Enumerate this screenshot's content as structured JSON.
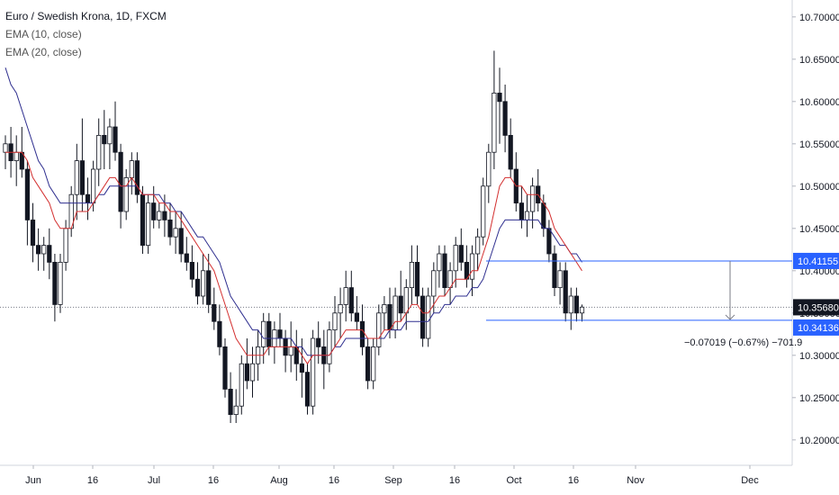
{
  "legend": {
    "title": "Euro / Swedish Krona, 1D, FXCM",
    "ema10": "EMA (10, close)",
    "ema20": "EMA (20, close)"
  },
  "measure_label": "−0.07019 (−0.67%) −701.9",
  "colors": {
    "up": "#131722",
    "down": "#131722",
    "ema10": "#d32f2f",
    "ema20": "#2f2f8f",
    "hline": "#2962ff",
    "price_tag": "#131722",
    "level_tag": "#2962ff",
    "grid": "#e0e3eb"
  },
  "chart_data": {
    "type": "candlestick",
    "title": "Euro / Swedish Krona, 1D, FXCM",
    "ylim": [
      10.17,
      10.72
    ],
    "y_ticks": [
      "10.70000",
      "10.65000",
      "10.60000",
      "10.55000",
      "10.50000",
      "10.45000",
      "10.40000",
      "10.35000",
      "10.30000",
      "10.25000",
      "10.20000"
    ],
    "x_ticks": [
      "Jun",
      "16",
      "Jul",
      "16",
      "Aug",
      "16",
      "Sep",
      "16",
      "Oct",
      "16",
      "Nov",
      "Dec"
    ],
    "levels": {
      "upper": "10.41155",
      "last": "10.35680",
      "lower": "10.34136"
    },
    "ohlc": [
      [
        10.54,
        10.56,
        10.52,
        10.55
      ],
      [
        10.55,
        10.57,
        10.51,
        10.53
      ],
      [
        10.53,
        10.56,
        10.5,
        10.54
      ],
      [
        10.54,
        10.57,
        10.51,
        10.52
      ],
      [
        10.52,
        10.53,
        10.43,
        10.46
      ],
      [
        10.46,
        10.48,
        10.41,
        10.43
      ],
      [
        10.43,
        10.45,
        10.4,
        10.42
      ],
      [
        10.42,
        10.44,
        10.4,
        10.43
      ],
      [
        10.43,
        10.45,
        10.39,
        10.41
      ],
      [
        10.41,
        10.42,
        10.34,
        10.36
      ],
      [
        10.36,
        10.42,
        10.35,
        10.41
      ],
      [
        10.41,
        10.46,
        10.4,
        10.45
      ],
      [
        10.45,
        10.5,
        10.44,
        10.49
      ],
      [
        10.49,
        10.55,
        10.46,
        10.53
      ],
      [
        10.53,
        10.58,
        10.47,
        10.49
      ],
      [
        10.49,
        10.51,
        10.46,
        10.48
      ],
      [
        10.48,
        10.53,
        10.47,
        10.52
      ],
      [
        10.52,
        10.58,
        10.5,
        10.56
      ],
      [
        10.56,
        10.59,
        10.52,
        10.55
      ],
      [
        10.55,
        10.58,
        10.52,
        10.57
      ],
      [
        10.57,
        10.6,
        10.53,
        10.54
      ],
      [
        10.54,
        10.55,
        10.45,
        10.47
      ],
      [
        10.47,
        10.52,
        10.46,
        10.51
      ],
      [
        10.51,
        10.54,
        10.49,
        10.53
      ],
      [
        10.53,
        10.54,
        10.48,
        10.49
      ],
      [
        10.49,
        10.5,
        10.42,
        10.43
      ],
      [
        10.43,
        10.49,
        10.42,
        10.48
      ],
      [
        10.48,
        10.5,
        10.45,
        10.46
      ],
      [
        10.46,
        10.48,
        10.45,
        10.47
      ],
      [
        10.47,
        10.49,
        10.44,
        10.46
      ],
      [
        10.46,
        10.48,
        10.43,
        10.44
      ],
      [
        10.44,
        10.47,
        10.42,
        10.45
      ],
      [
        10.45,
        10.47,
        10.41,
        10.42
      ],
      [
        10.42,
        10.44,
        10.4,
        10.41
      ],
      [
        10.41,
        10.43,
        10.38,
        10.39
      ],
      [
        10.39,
        10.41,
        10.36,
        10.37
      ],
      [
        10.37,
        10.42,
        10.36,
        10.4
      ],
      [
        10.4,
        10.42,
        10.35,
        10.36
      ],
      [
        10.36,
        10.38,
        10.33,
        10.34
      ],
      [
        10.34,
        10.36,
        10.3,
        10.31
      ],
      [
        10.31,
        10.32,
        10.25,
        10.26
      ],
      [
        10.26,
        10.28,
        10.22,
        10.23
      ],
      [
        10.23,
        10.26,
        10.22,
        10.24
      ],
      [
        10.24,
        10.3,
        10.23,
        10.29
      ],
      [
        10.29,
        10.32,
        10.26,
        10.27
      ],
      [
        10.27,
        10.31,
        10.25,
        10.29
      ],
      [
        10.29,
        10.33,
        10.27,
        10.31
      ],
      [
        10.31,
        10.35,
        10.29,
        10.34
      ],
      [
        10.34,
        10.35,
        10.3,
        10.31
      ],
      [
        10.31,
        10.34,
        10.29,
        10.33
      ],
      [
        10.33,
        10.35,
        10.31,
        10.32
      ],
      [
        10.32,
        10.33,
        10.28,
        10.3
      ],
      [
        10.3,
        10.34,
        10.28,
        10.31
      ],
      [
        10.31,
        10.33,
        10.27,
        10.29
      ],
      [
        10.29,
        10.32,
        10.25,
        10.28
      ],
      [
        10.28,
        10.29,
        10.23,
        10.24
      ],
      [
        10.24,
        10.33,
        10.23,
        10.32
      ],
      [
        10.32,
        10.34,
        10.29,
        10.31
      ],
      [
        10.31,
        10.33,
        10.26,
        10.29
      ],
      [
        10.29,
        10.34,
        10.28,
        10.33
      ],
      [
        10.33,
        10.37,
        10.31,
        10.35
      ],
      [
        10.35,
        10.38,
        10.32,
        10.36
      ],
      [
        10.36,
        10.4,
        10.34,
        10.38
      ],
      [
        10.38,
        10.4,
        10.34,
        10.35
      ],
      [
        10.35,
        10.37,
        10.33,
        10.34
      ],
      [
        10.34,
        10.36,
        10.3,
        10.31
      ],
      [
        10.31,
        10.32,
        10.26,
        10.27
      ],
      [
        10.27,
        10.32,
        10.26,
        10.31
      ],
      [
        10.31,
        10.36,
        10.3,
        10.35
      ],
      [
        10.35,
        10.37,
        10.33,
        10.36
      ],
      [
        10.36,
        10.38,
        10.32,
        10.33
      ],
      [
        10.33,
        10.38,
        10.32,
        10.37
      ],
      [
        10.37,
        10.4,
        10.34,
        10.35
      ],
      [
        10.35,
        10.39,
        10.33,
        10.38
      ],
      [
        10.38,
        10.43,
        10.36,
        10.41
      ],
      [
        10.41,
        10.43,
        10.36,
        10.37
      ],
      [
        10.37,
        10.38,
        10.31,
        10.32
      ],
      [
        10.32,
        10.38,
        10.31,
        10.37
      ],
      [
        10.37,
        10.41,
        10.35,
        10.4
      ],
      [
        10.4,
        10.43,
        10.38,
        10.42
      ],
      [
        10.42,
        10.43,
        10.37,
        10.38
      ],
      [
        10.38,
        10.41,
        10.36,
        10.4
      ],
      [
        10.4,
        10.44,
        10.38,
        10.43
      ],
      [
        10.43,
        10.45,
        10.4,
        10.41
      ],
      [
        10.41,
        10.43,
        10.38,
        10.39
      ],
      [
        10.39,
        10.43,
        10.37,
        10.42
      ],
      [
        10.42,
        10.45,
        10.4,
        10.44
      ],
      [
        10.44,
        10.51,
        10.43,
        10.5
      ],
      [
        10.5,
        10.55,
        10.48,
        10.54
      ],
      [
        10.54,
        10.66,
        10.52,
        10.61
      ],
      [
        10.61,
        10.64,
        10.55,
        10.6
      ],
      [
        10.6,
        10.62,
        10.54,
        10.56
      ],
      [
        10.56,
        10.58,
        10.51,
        10.52
      ],
      [
        10.52,
        10.54,
        10.47,
        10.48
      ],
      [
        10.48,
        10.5,
        10.45,
        10.46
      ],
      [
        10.46,
        10.49,
        10.44,
        10.47
      ],
      [
        10.47,
        10.51,
        10.45,
        10.5
      ],
      [
        10.5,
        10.52,
        10.47,
        10.48
      ],
      [
        10.48,
        10.49,
        10.44,
        10.45
      ],
      [
        10.45,
        10.46,
        10.41,
        10.42
      ],
      [
        10.42,
        10.43,
        10.37,
        10.38
      ],
      [
        10.38,
        10.41,
        10.36,
        10.4
      ],
      [
        10.4,
        10.41,
        10.34,
        10.35
      ],
      [
        10.35,
        10.38,
        10.33,
        10.37
      ],
      [
        10.37,
        10.38,
        10.34,
        10.35
      ],
      [
        10.35,
        10.36,
        10.34,
        10.357
      ]
    ],
    "ema10": [
      10.54,
      10.54,
      10.54,
      10.54,
      10.53,
      10.51,
      10.5,
      10.49,
      10.48,
      10.46,
      10.45,
      10.45,
      10.45,
      10.47,
      10.47,
      10.47,
      10.48,
      10.49,
      10.5,
      10.51,
      10.51,
      10.5,
      10.5,
      10.51,
      10.5,
      10.49,
      10.49,
      10.49,
      10.48,
      10.48,
      10.47,
      10.47,
      10.46,
      10.45,
      10.44,
      10.43,
      10.42,
      10.41,
      10.4,
      10.38,
      10.36,
      10.34,
      10.32,
      10.31,
      10.3,
      10.3,
      10.3,
      10.3,
      10.31,
      10.31,
      10.31,
      10.31,
      10.31,
      10.31,
      10.3,
      10.29,
      10.3,
      10.3,
      10.3,
      10.3,
      10.31,
      10.32,
      10.33,
      10.33,
      10.33,
      10.33,
      10.32,
      10.32,
      10.32,
      10.33,
      10.33,
      10.34,
      10.34,
      10.35,
      10.36,
      10.36,
      10.35,
      10.35,
      10.36,
      10.37,
      10.37,
      10.38,
      10.39,
      10.39,
      10.39,
      10.4,
      10.4,
      10.42,
      10.44,
      10.47,
      10.5,
      10.51,
      10.51,
      10.5,
      10.5,
      10.49,
      10.49,
      10.49,
      10.48,
      10.47,
      10.45,
      10.44,
      10.43,
      10.42,
      10.41,
      10.4
    ],
    "ema20": [
      10.64,
      10.62,
      10.61,
      10.59,
      10.57,
      10.55,
      10.53,
      10.52,
      10.5,
      10.49,
      10.48,
      10.48,
      10.48,
      10.48,
      10.48,
      10.48,
      10.48,
      10.49,
      10.49,
      10.5,
      10.5,
      10.5,
      10.5,
      10.5,
      10.5,
      10.49,
      10.49,
      10.49,
      10.49,
      10.48,
      10.48,
      10.47,
      10.47,
      10.46,
      10.45,
      10.44,
      10.44,
      10.43,
      10.42,
      10.41,
      10.39,
      10.37,
      10.36,
      10.35,
      10.34,
      10.33,
      10.33,
      10.32,
      10.32,
      10.32,
      10.32,
      10.32,
      10.32,
      10.31,
      10.31,
      10.3,
      10.3,
      10.3,
      10.3,
      10.3,
      10.31,
      10.31,
      10.32,
      10.32,
      10.32,
      10.32,
      10.32,
      10.32,
      10.32,
      10.32,
      10.33,
      10.33,
      10.33,
      10.34,
      10.34,
      10.34,
      10.34,
      10.34,
      10.35,
      10.35,
      10.36,
      10.36,
      10.37,
      10.37,
      10.37,
      10.38,
      10.38,
      10.39,
      10.41,
      10.43,
      10.45,
      10.46,
      10.46,
      10.46,
      10.46,
      10.46,
      10.46,
      10.46,
      10.45,
      10.45,
      10.44,
      10.43,
      10.43,
      10.42,
      10.42,
      10.41
    ]
  }
}
